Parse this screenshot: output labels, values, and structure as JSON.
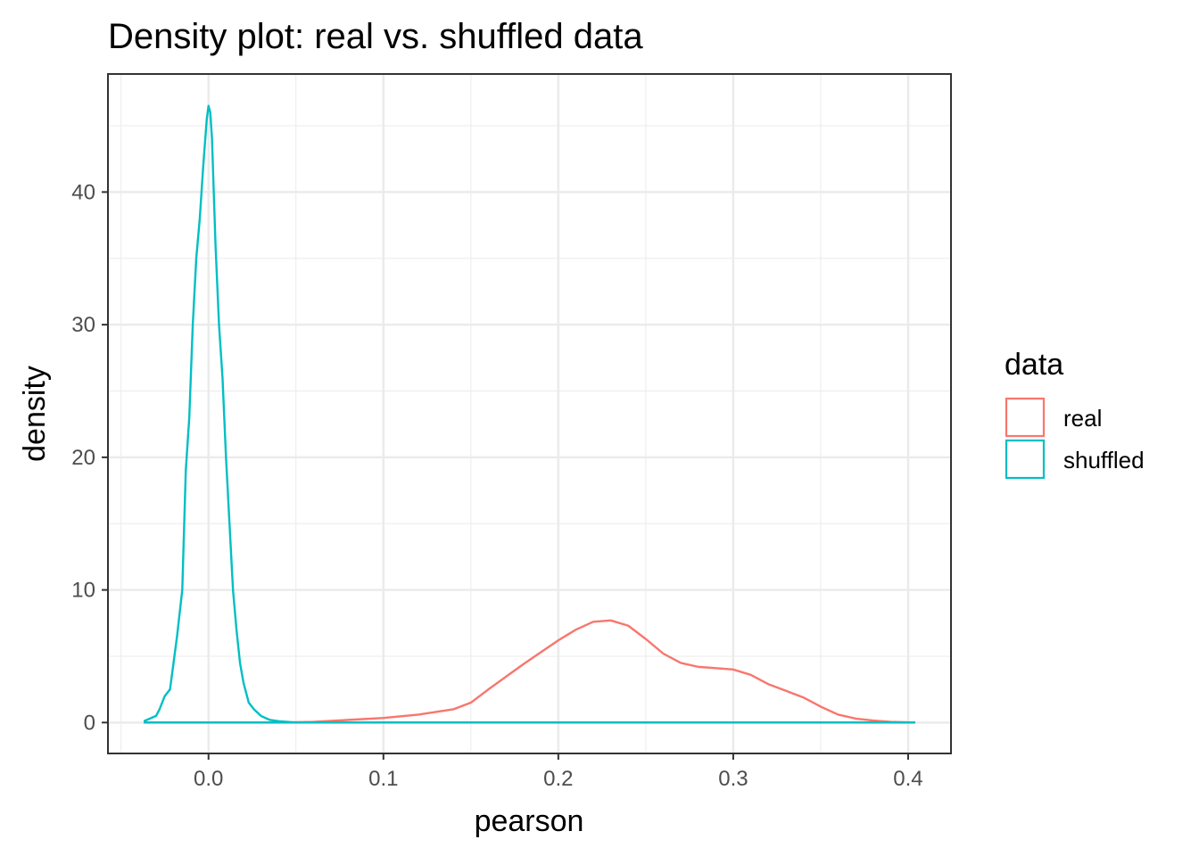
{
  "chart_data": {
    "type": "line",
    "title": "Density plot: real vs. shuffled data",
    "xlabel": "pearson",
    "ylabel": "density",
    "xlim": [
      -0.0575,
      0.4245
    ],
    "ylim": [
      -2.33,
      48.9
    ],
    "x_ticks": [
      0.0,
      0.1,
      0.2,
      0.3,
      0.4
    ],
    "x_tick_labels": [
      "0.0",
      "0.1",
      "0.2",
      "0.3",
      "0.4"
    ],
    "y_ticks": [
      0,
      10,
      20,
      30,
      40
    ],
    "y_tick_labels": [
      "0",
      "10",
      "20",
      "30",
      "40"
    ],
    "grid": true,
    "legend": {
      "title": "data",
      "position": "right",
      "entries": [
        {
          "label": "real",
          "color": "#F8766D"
        },
        {
          "label": "shuffled",
          "color": "#00BFC4"
        }
      ]
    },
    "series": [
      {
        "name": "real",
        "color": "#F8766D",
        "x": [
          -0.037,
          0.0,
          0.04,
          0.06,
          0.08,
          0.1,
          0.12,
          0.14,
          0.15,
          0.16,
          0.18,
          0.2,
          0.21,
          0.22,
          0.23,
          0.24,
          0.25,
          0.26,
          0.27,
          0.28,
          0.29,
          0.3,
          0.31,
          0.32,
          0.33,
          0.34,
          0.35,
          0.36,
          0.37,
          0.38,
          0.39,
          0.404
        ],
        "y": [
          0,
          0,
          0,
          0.05,
          0.2,
          0.35,
          0.6,
          1.0,
          1.5,
          2.5,
          4.4,
          6.2,
          7.0,
          7.6,
          7.7,
          7.3,
          6.3,
          5.2,
          4.5,
          4.2,
          4.1,
          4.0,
          3.6,
          2.9,
          2.4,
          1.9,
          1.2,
          0.6,
          0.3,
          0.15,
          0.05,
          0
        ]
      },
      {
        "name": "shuffled",
        "color": "#00BFC4",
        "x": [
          -0.037,
          -0.03,
          -0.028,
          -0.025,
          -0.022,
          -0.02,
          -0.018,
          -0.015,
          -0.013,
          -0.011,
          -0.009,
          -0.007,
          -0.005,
          -0.003,
          -0.001,
          0.0,
          0.001,
          0.002,
          0.004,
          0.006,
          0.008,
          0.01,
          0.012,
          0.014,
          0.016,
          0.018,
          0.02,
          0.023,
          0.026,
          0.03,
          0.035,
          0.04,
          0.05,
          0.06,
          0.1,
          0.404
        ],
        "y": [
          0.1,
          0.5,
          1.0,
          2.0,
          2.5,
          4.5,
          6.5,
          10.0,
          19.0,
          23.0,
          30.0,
          35.0,
          38.0,
          42.0,
          45.5,
          46.5,
          46.0,
          44.0,
          36.0,
          30.0,
          26.0,
          20.0,
          15.0,
          10.0,
          7.0,
          4.5,
          3.0,
          1.5,
          1.0,
          0.5,
          0.2,
          0.1,
          0.0,
          0.0,
          0.0,
          0.0
        ]
      }
    ]
  }
}
